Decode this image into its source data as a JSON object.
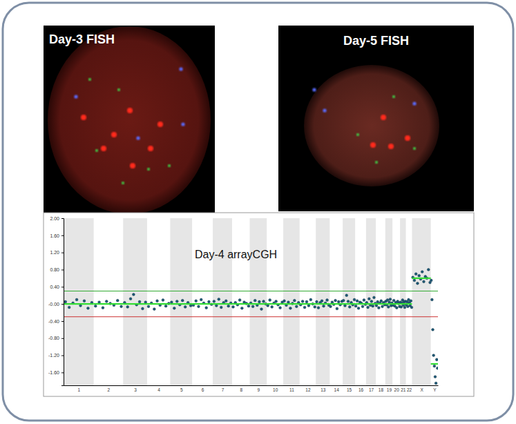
{
  "images": [
    {
      "label": "Day-3 FISH"
    },
    {
      "label": "Day-5 FISH"
    }
  ],
  "chart_data": {
    "type": "scatter",
    "title": "Day-4 arrayCGH",
    "categories": [
      "1",
      "2",
      "3",
      "4",
      "5",
      "6",
      "7",
      "8",
      "9",
      "10",
      "11",
      "12",
      "13",
      "14",
      "15",
      "16",
      "17",
      "18",
      "19",
      "20",
      "21",
      "22",
      "X",
      "Y"
    ],
    "chromosome_lengths": [
      249,
      243,
      198,
      191,
      181,
      171,
      159,
      146,
      141,
      136,
      135,
      134,
      115,
      107,
      103,
      90,
      81,
      78,
      59,
      63,
      48,
      51,
      155,
      59
    ],
    "ylim": [
      -1.9,
      2.0
    ],
    "yticks": [
      {
        "value": 2,
        "label": "2.00"
      },
      {
        "value": 1.6,
        "label": "1.60"
      },
      {
        "value": 1.2,
        "label": "1.20"
      },
      {
        "value": 0.8,
        "label": "0.80"
      },
      {
        "value": 0.4,
        "label": "0.40"
      },
      {
        "value": 0,
        "label": "-0.00"
      },
      {
        "value": -0.4,
        "label": "-0.40"
      },
      {
        "value": -0.8,
        "label": "-0.80"
      },
      {
        "value": -1.2,
        "label": "-1.20"
      },
      {
        "value": -1.6,
        "label": "-1.60"
      }
    ],
    "thresholds": [
      {
        "value": 0.3,
        "color": "#33aa33"
      },
      {
        "value": -0.3,
        "color": "#cc3333"
      }
    ],
    "grid": false,
    "series": [
      {
        "type": "scatter",
        "color": "#1f5a78",
        "marker": "circle",
        "values": [
          [
            0.05,
            -0.08,
            0.02,
            0.1,
            -0.04,
            0.07,
            -0.1,
            0.03
          ],
          [
            -0.05,
            0.04,
            -0.09,
            0.06,
            0.01,
            -0.03,
            0.08,
            -0.06
          ],
          [
            0.03,
            -0.07,
            0.12,
            0.22,
            -0.02,
            0.05,
            -0.11,
            0.04
          ],
          [
            -0.06,
            0.02,
            -0.12,
            0.07,
            -0.03,
            0.09,
            -0.05,
            0.01
          ],
          [
            0.04,
            -0.1,
            0.06,
            -0.02,
            0.08,
            -0.07,
            0.03,
            -0.04
          ],
          [
            -0.03,
            0.07,
            -0.06,
            0.1,
            0.02,
            -0.09,
            0.05,
            -0.01
          ],
          [
            0.06,
            -0.04,
            0.11,
            -0.08,
            0.03,
            0.07,
            -0.05,
            0.02
          ],
          [
            -0.07,
            0.03,
            -0.02,
            0.09,
            -0.1,
            0.04,
            0.01,
            -0.05
          ],
          [
            0.02,
            -0.06,
            0.08,
            -0.03,
            0.05,
            -0.12,
            0.06,
            0.0
          ],
          [
            -0.04,
            0.09,
            -0.07,
            0.02,
            0.06,
            -0.02,
            -0.09,
            0.04
          ],
          [
            0.07,
            -0.03,
            0.04,
            -0.1,
            0.01,
            0.08,
            -0.06,
            0.03
          ],
          [
            -0.02,
            0.06,
            -0.08,
            0.05,
            -0.04,
            0.1,
            0.0,
            -0.07
          ],
          [
            0.05,
            -0.09,
            0.03,
            0.07,
            -0.05,
            0.02,
            0.09,
            -0.03
          ],
          [
            -0.06,
            0.04,
            -0.01,
            0.08,
            -0.11,
            0.05,
            -0.02,
            0.06
          ],
          [
            0.08,
            -0.04,
            0.2,
            0.06,
            -0.07,
            0.03,
            -0.02,
            0.1
          ],
          [
            -0.05,
            0.07,
            -0.1,
            0.04,
            0.02,
            -0.06,
            0.09,
            -0.01
          ],
          [
            0.03,
            -0.08,
            0.12,
            -0.03,
            0.06,
            -0.05,
            0.15,
            0.01
          ],
          [
            -0.04,
            0.05,
            -0.09,
            0.02,
            0.07,
            -0.06,
            0.03,
            -0.02
          ],
          [
            0.06,
            -0.02,
            0.09,
            -0.07,
            0.04,
            0.11,
            -0.04,
            0.02
          ],
          [
            -0.03,
            0.08,
            -0.05,
            0.03,
            -0.09,
            0.06,
            0.01,
            -0.06
          ],
          [
            0.04,
            -0.07,
            0.02,
            0.09,
            -0.03,
            0.05,
            -0.08,
            0.06
          ],
          [
            -0.02,
            0.05,
            -0.06,
            0.1,
            0.03,
            -0.04,
            0.07,
            -0.08
          ],
          [
            0.62,
            0.55,
            0.7,
            0.48,
            0.66,
            0.58,
            0.75,
            0.52,
            0.64,
            0.6,
            0.8,
            0.5
          ],
          [
            0.55,
            0.1,
            -0.6,
            -1.2,
            -1.45,
            -1.7,
            -1.85,
            -1.3,
            -1.5
          ]
        ]
      },
      {
        "type": "line",
        "color": "#33dd33",
        "line_style": "solid",
        "values": [
          0,
          0,
          0,
          0,
          0,
          0,
          0,
          0,
          0,
          0,
          0,
          0,
          0,
          0,
          0,
          0,
          0,
          0,
          0,
          0,
          0,
          0,
          0.6,
          -1.4
        ]
      }
    ]
  }
}
